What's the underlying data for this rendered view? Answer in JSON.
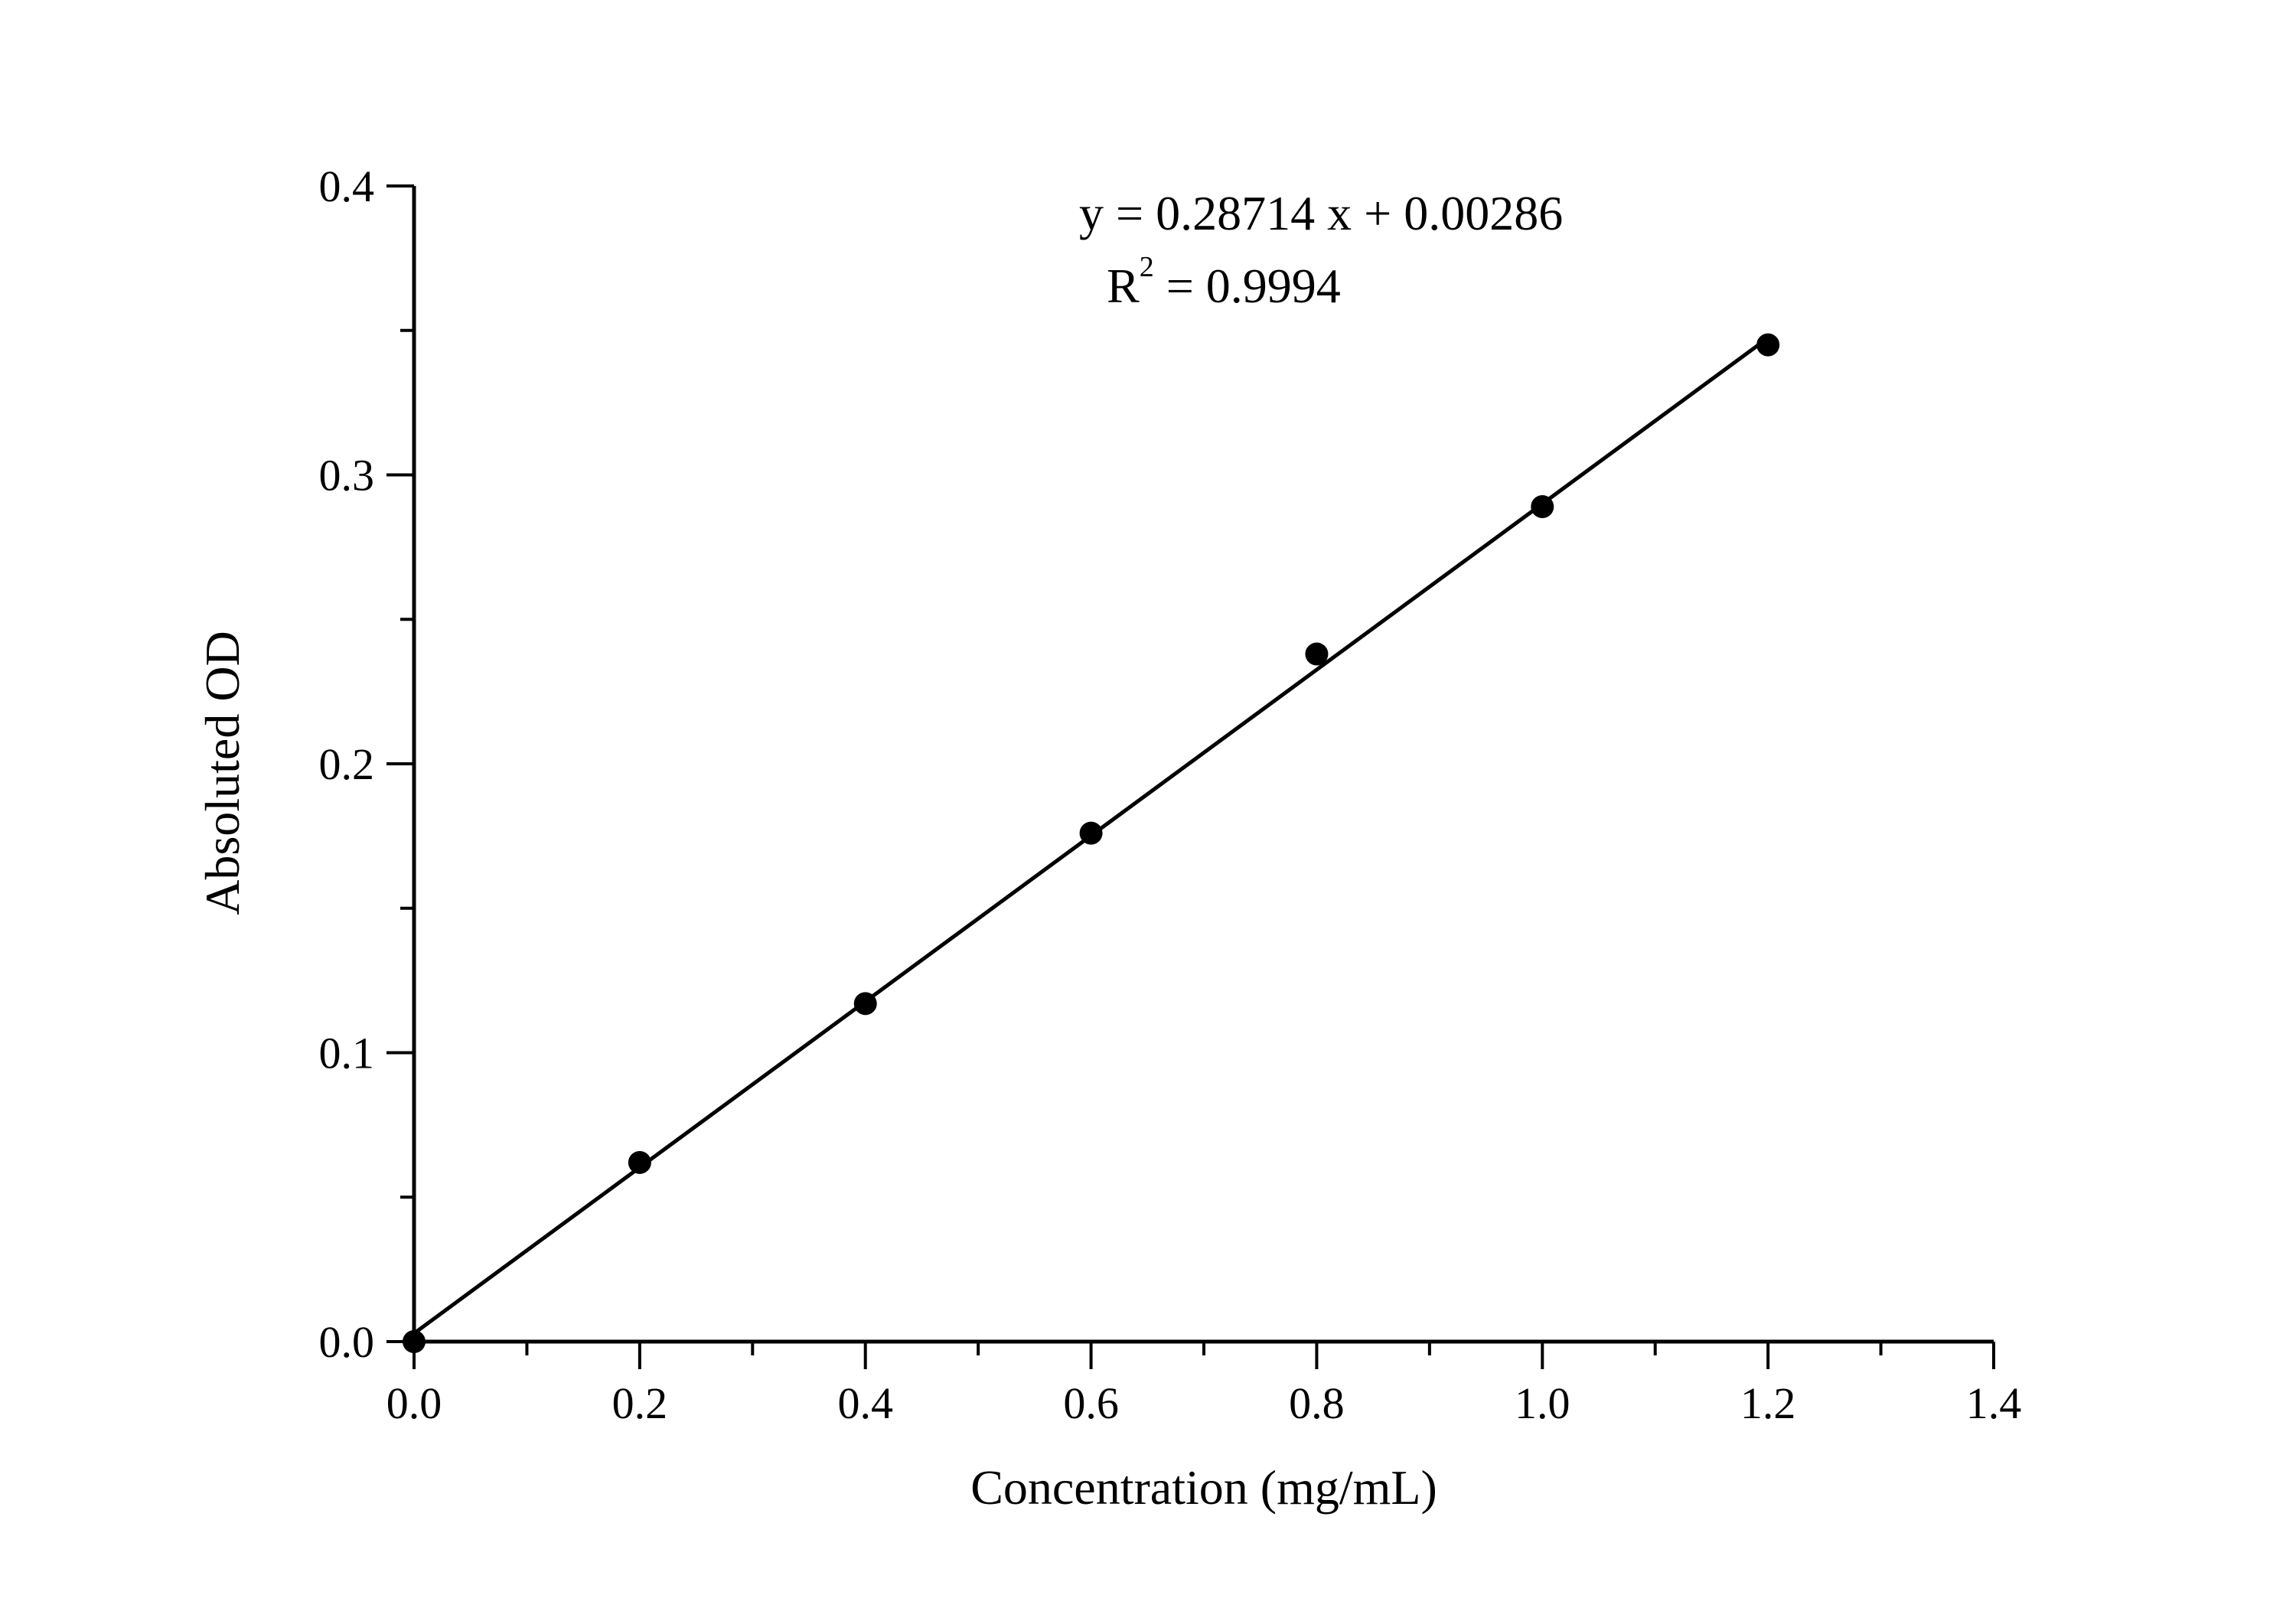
{
  "chart_data": {
    "type": "scatter",
    "title": "",
    "xlabel": "Concentration (mg/mL)",
    "ylabel": "Absoluted OD",
    "xlim": [
      0.0,
      1.4
    ],
    "ylim": [
      0.0,
      0.4
    ],
    "x_ticks": [
      "0.0",
      "0.2",
      "0.4",
      "0.6",
      "0.8",
      "1.0",
      "1.2",
      "1.4"
    ],
    "y_ticks": [
      "0.0",
      "0.1",
      "0.2",
      "0.3",
      "0.4"
    ],
    "x_minor_step": 0.1,
    "y_minor_step": 0.05,
    "grid": false,
    "legend": "none",
    "series": [
      {
        "marker": "filled-circle",
        "color": "#000000",
        "x": [
          0.0,
          0.2,
          0.4,
          0.6,
          0.8,
          1.0,
          1.2
        ],
        "y": [
          0.0,
          0.062,
          0.117,
          0.176,
          0.238,
          0.289,
          0.345
        ]
      }
    ],
    "fit": {
      "slope": 0.28714,
      "intercept": 0.00286,
      "x_range": [
        0.0,
        1.2
      ],
      "color": "#000000"
    },
    "annotations": {
      "equation": "y = 0.28714 x + 0.00286",
      "r2_label": "R",
      "r2_superscript": "2",
      "r2_value": " = 0.9994"
    }
  }
}
